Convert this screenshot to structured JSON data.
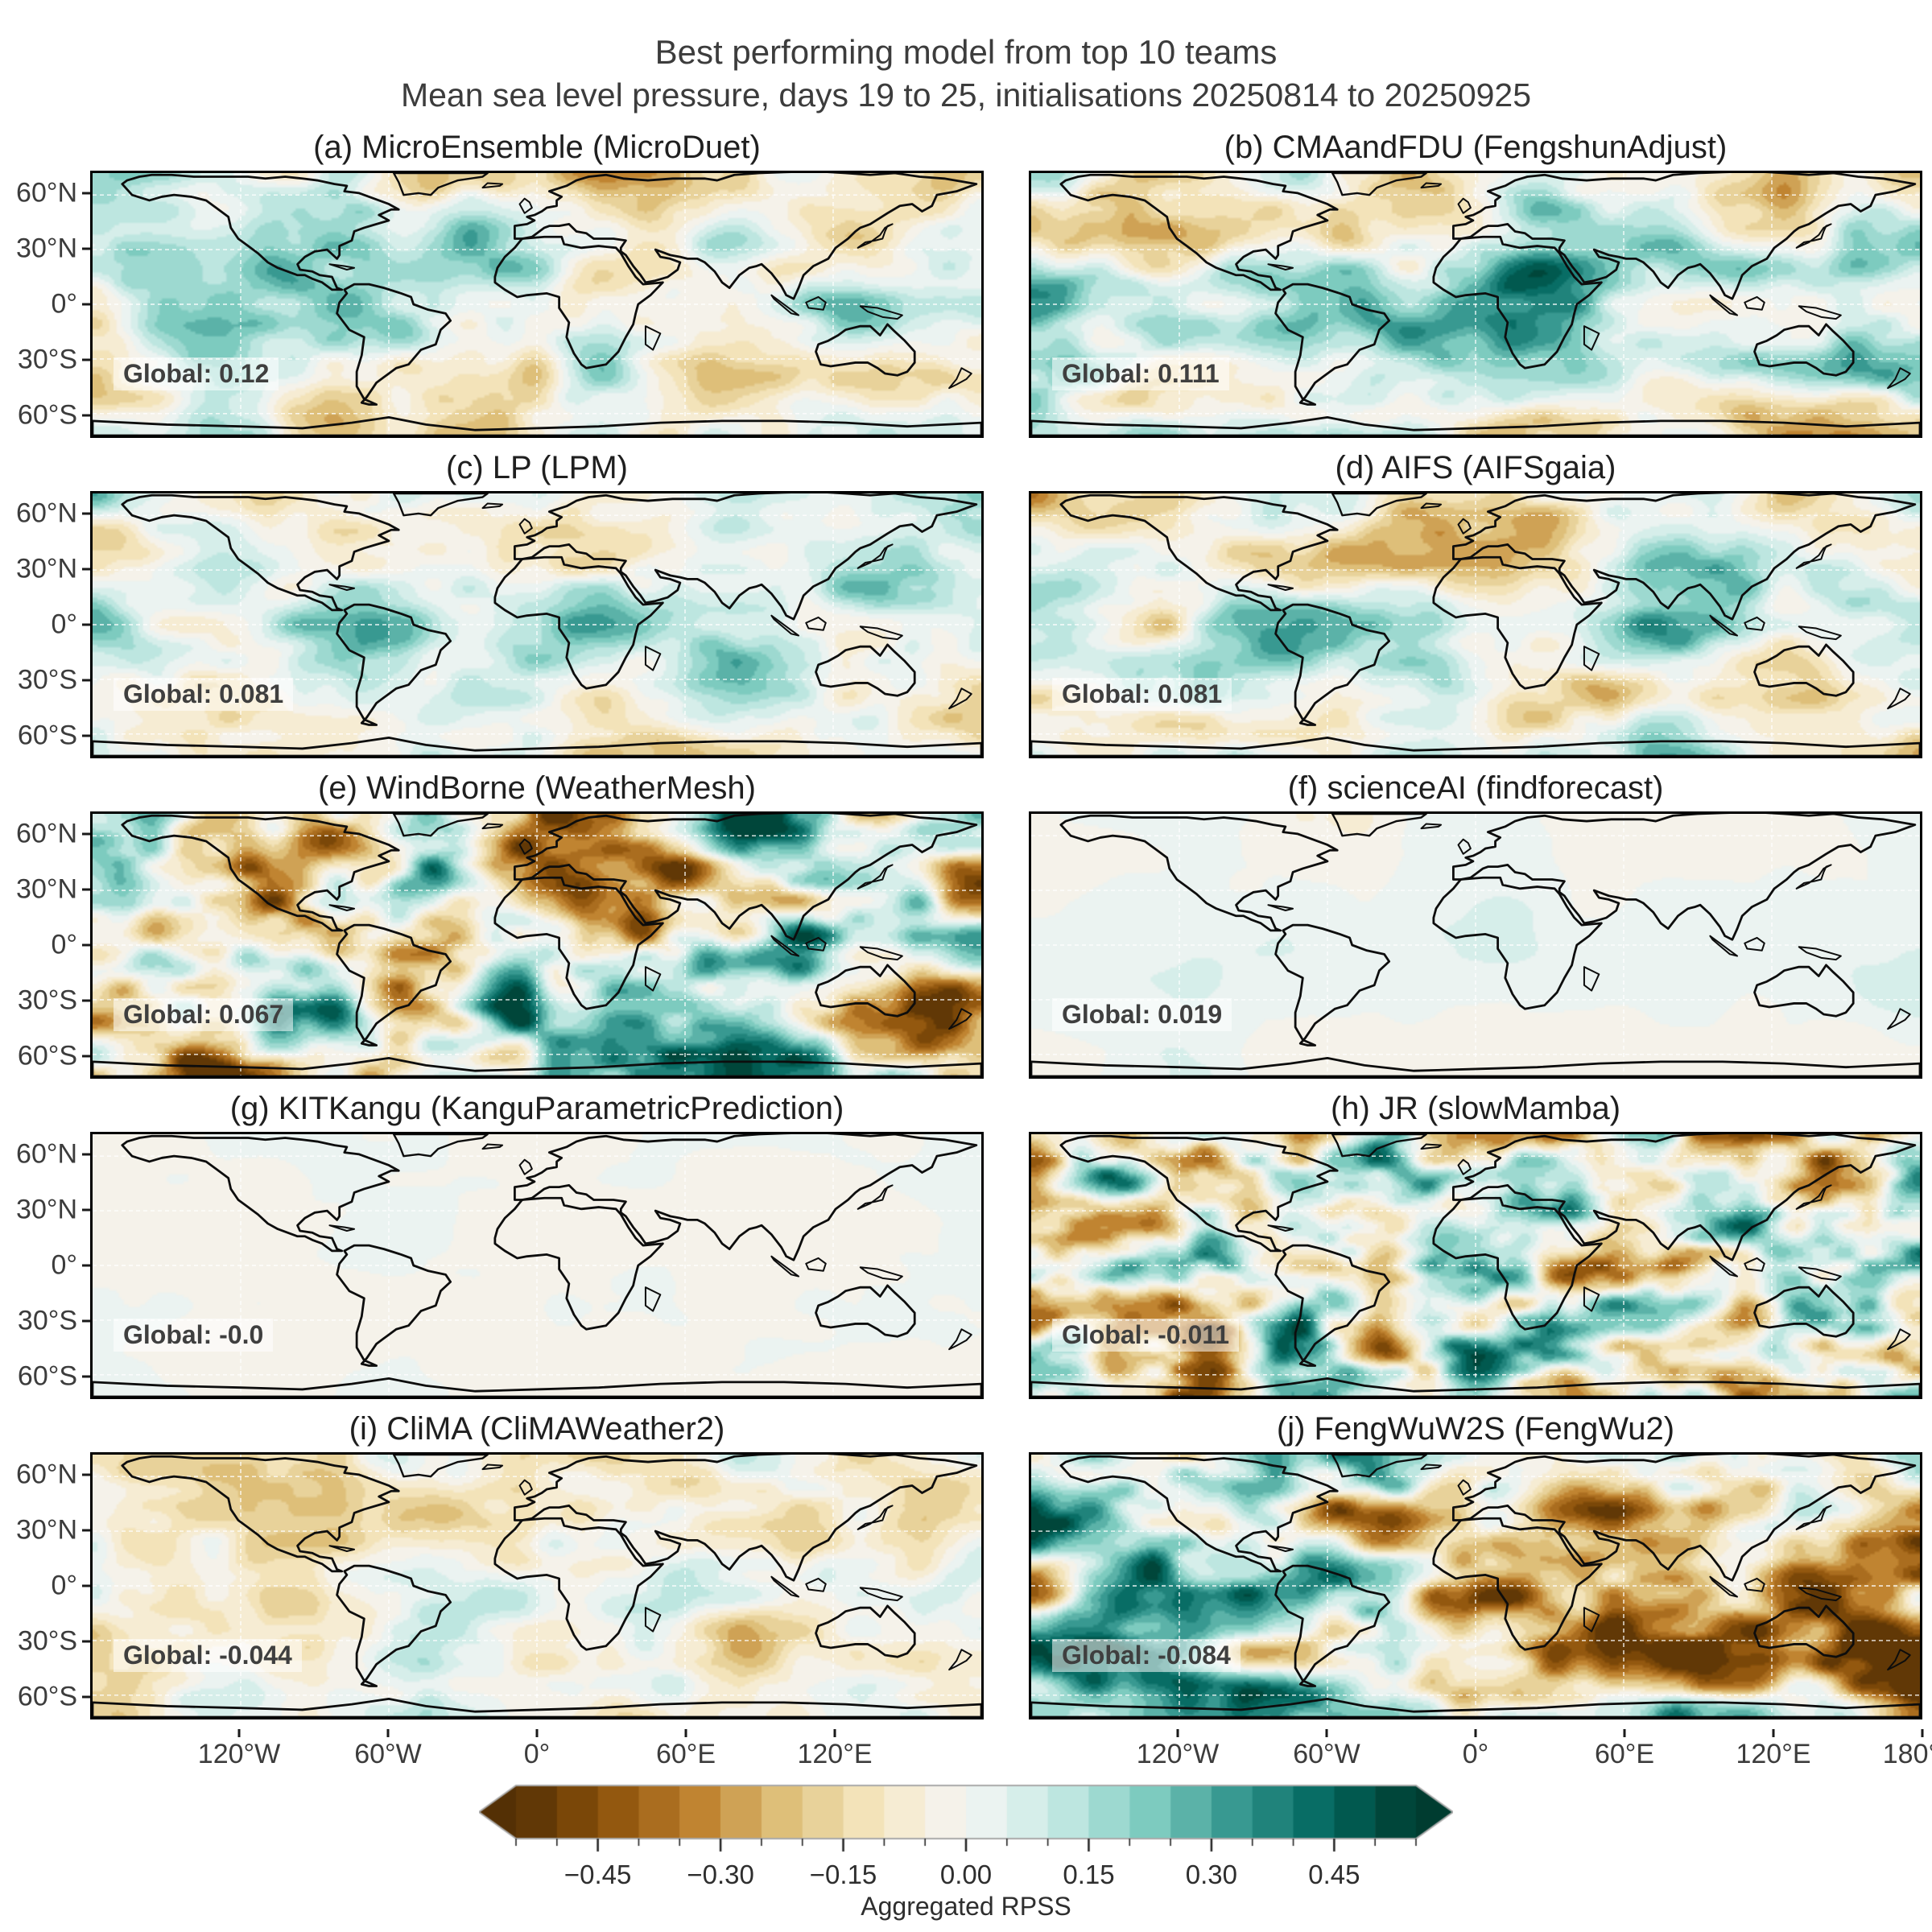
{
  "figure": {
    "title": "Best performing model from top 10 teams",
    "subtitle": "Mean sea level pressure, days 19 to 25, initialisations 20250814 to 20250925"
  },
  "axes": {
    "lat_ticks": [
      {
        "label": "60°N",
        "lat": 60
      },
      {
        "label": "30°N",
        "lat": 30
      },
      {
        "label": "0°",
        "lat": 0
      },
      {
        "label": "30°S",
        "lat": -30
      },
      {
        "label": "60°S",
        "lat": -60
      }
    ],
    "lon_ticks": [
      {
        "label": "120°W",
        "lon": -120
      },
      {
        "label": "60°W",
        "lon": -60
      },
      {
        "label": "0°",
        "lon": 0
      },
      {
        "label": "60°E",
        "lon": 60
      },
      {
        "label": "120°E",
        "lon": 120
      },
      {
        "label": "180°",
        "lon": 180
      }
    ],
    "lat_range": [
      -72,
      72
    ],
    "lon_range": [
      -180,
      180
    ],
    "grid": "dashed-white"
  },
  "colorbar": {
    "label": "Aggregated RPSS",
    "ticks": [
      "−0.45",
      "−0.30",
      "−0.15",
      "0.00",
      "0.15",
      "0.30",
      "0.45"
    ],
    "tick_values": [
      -0.45,
      -0.3,
      -0.15,
      0,
      0.15,
      0.3,
      0.45
    ],
    "vmin": -0.55,
    "vmax": 0.55,
    "bin_width": 0.05,
    "extend": "both",
    "colormap_stops": [
      "#543005",
      "#8c510a",
      "#bf812d",
      "#dfc27d",
      "#f6e8c3",
      "#f5f5f5",
      "#c7eae5",
      "#80cdc1",
      "#35978f",
      "#01665e",
      "#003c30"
    ]
  },
  "chart_data": {
    "type": "heatmap",
    "layout": "5 rows x 2 columns of global maps, shared colorbar at bottom",
    "projection": "equirectangular",
    "value_name": "Aggregated RPSS",
    "panels": [
      {
        "id": "a",
        "title": "(a) MicroEnsemble (MicroDuet)",
        "team": "MicroEnsemble",
        "model": "MicroDuet",
        "global_rpss": 0.12,
        "global_label": "Global: 0.12",
        "field_hints": {
          "amp": 0.26,
          "bias": 0.05,
          "band": 0.12,
          "east": 0,
          "freq": 1,
          "seed": 11
        }
      },
      {
        "id": "b",
        "title": "(b) CMAandFDU (FengshunAdjust)",
        "team": "CMAandFDU",
        "model": "FengshunAdjust",
        "global_rpss": 0.111,
        "global_label": "Global: 0.111",
        "field_hints": {
          "amp": 0.3,
          "bias": 0.04,
          "band": 0.14,
          "east": 0,
          "freq": 1,
          "seed": 22
        }
      },
      {
        "id": "c",
        "title": "(c) LP (LPM)",
        "team": "LP",
        "model": "LPM",
        "global_rpss": 0.081,
        "global_label": "Global: 0.081",
        "field_hints": {
          "amp": 0.24,
          "bias": 0.035,
          "band": 0.08,
          "east": 0,
          "freq": 1,
          "seed": 33
        }
      },
      {
        "id": "d",
        "title": "(d) AIFS (AIFSgaia)",
        "team": "AIFS",
        "model": "AIFSgaia",
        "global_rpss": 0.081,
        "global_label": "Global: 0.081",
        "field_hints": {
          "amp": 0.26,
          "bias": 0.035,
          "band": 0.1,
          "east": 0.03,
          "freq": 1,
          "seed": 44
        }
      },
      {
        "id": "e",
        "title": "(e) WindBorne (WeatherMesh)",
        "team": "WindBorne",
        "model": "WeatherMesh",
        "global_rpss": 0.067,
        "global_label": "Global: 0.067",
        "field_hints": {
          "amp": 0.55,
          "bias": 0.02,
          "band": 0.1,
          "east": 0.05,
          "freq": 1.1,
          "seed": 55
        }
      },
      {
        "id": "f",
        "title": "(f) scienceAI (findforecast)",
        "team": "scienceAI",
        "model": "findforecast",
        "global_rpss": 0.019,
        "global_label": "Global: 0.019",
        "field_hints": {
          "amp": 0.05,
          "bias": 0.012,
          "band": 0.02,
          "east": 0,
          "freq": 0.8,
          "seed": 66
        }
      },
      {
        "id": "g",
        "title": "(g) KITKangu (KanguParametricPrediction)",
        "team": "KITKangu",
        "model": "KanguParametricPrediction",
        "global_rpss": -0.0,
        "global_label": "Global: -0.0",
        "field_hints": {
          "amp": 0.015,
          "bias": -0.004,
          "band": 0,
          "east": 0,
          "freq": 0.8,
          "seed": 77
        }
      },
      {
        "id": "h",
        "title": "(h) JR (slowMamba)",
        "team": "JR",
        "model": "slowMamba",
        "global_rpss": -0.011,
        "global_label": "Global: -0.011",
        "field_hints": {
          "amp": 0.45,
          "bias": -0.015,
          "band": 0.02,
          "east": 0.05,
          "freq": 1.4,
          "seed": 88
        }
      },
      {
        "id": "i",
        "title": "(i) CliMA (CliMAWeather2)",
        "team": "CliMA",
        "model": "CliMAWeather2",
        "global_rpss": -0.044,
        "global_label": "Global: -0.044",
        "field_hints": {
          "amp": 0.2,
          "bias": -0.045,
          "band": -0.02,
          "east": 0,
          "freq": 1.1,
          "seed": 99
        }
      },
      {
        "id": "j",
        "title": "(j) FengWuW2S (FengWu2)",
        "team": "FengWuW2S",
        "model": "FengWu2",
        "global_rpss": -0.084,
        "global_label": "Global: -0.084",
        "field_hints": {
          "amp": 0.48,
          "bias": -0.05,
          "band": -0.06,
          "east": -0.22,
          "freq": 1.1,
          "seed": 110
        }
      }
    ]
  }
}
